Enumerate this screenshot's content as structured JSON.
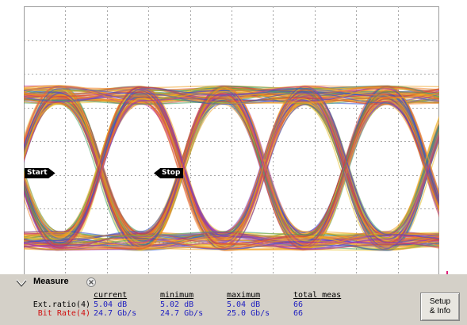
{
  "markers": {
    "start": "Start",
    "stop": "Stop"
  },
  "measure_panel": {
    "tab_label": "Measure",
    "columns": [
      "current",
      "minimum",
      "maximum",
      "total meas"
    ],
    "rows": [
      {
        "label": "Ext.ratio(4)",
        "current": "5.04 dB",
        "minimum": "5.02 dB",
        "maximum": "5.04 dB",
        "total_meas": "66",
        "label_color": "#000000"
      },
      {
        "label": "Bit Rate(4)",
        "current": "24.7 Gb/s",
        "minimum": "24.7 Gb/s",
        "maximum": "25.0 Gb/s",
        "total_meas": "66",
        "label_color": "#d01010"
      }
    ],
    "setup_button": {
      "line1": "Setup",
      "line2": "& Info"
    }
  },
  "colors": {
    "value_text": "#2020c0",
    "trigger_marker": "#e0207a",
    "panel_bg": "#d4d0c8"
  },
  "icons": {
    "tab_chevron": "chevron-down-icon",
    "tab_close": "close-icon",
    "trigger": "trigger-arrow-icon"
  }
}
